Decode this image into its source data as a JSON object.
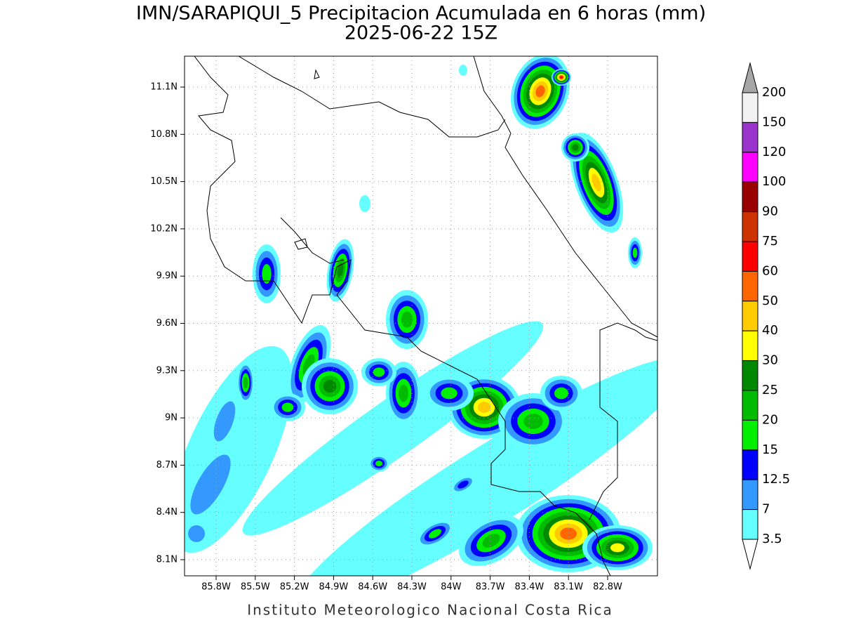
{
  "header": {
    "title": "IMN/SARAPIQUI_5 Precipitacion Acumulada en 6 horas (mm)",
    "subtitle": "2025-06-22 15Z"
  },
  "map": {
    "lon_ticks": [
      "85.8W",
      "85.5W",
      "85.2W",
      "84.9W",
      "84.6W",
      "84.3W",
      "84W",
      "83.7W",
      "83.4W",
      "83.1W",
      "82.8W"
    ],
    "lat_ticks": [
      "11.1N",
      "10.8N",
      "10.5N",
      "10.2N",
      "9.9N",
      "9.6N",
      "9.3N",
      "9N",
      "8.7N",
      "8.4N",
      "8.1N"
    ]
  },
  "colorbar": {
    "labels": [
      "200",
      "150",
      "120",
      "100",
      "90",
      "75",
      "60",
      "50",
      "40",
      "30",
      "25",
      "20",
      "15",
      "12.5",
      "7",
      "3.5"
    ],
    "colors": [
      "#a6a6a6",
      "#f2f2f2",
      "#9933cc",
      "#ff00ff",
      "#990000",
      "#cc3300",
      "#ff0000",
      "#ff6600",
      "#ffcc00",
      "#ffff00",
      "#008800",
      "#00bb00",
      "#00ee00",
      "#0000ff",
      "#3399ff",
      "#66ffff",
      "#ffffff"
    ]
  },
  "footer": "Instituto Meteorologico Nacional Costa Rica"
}
